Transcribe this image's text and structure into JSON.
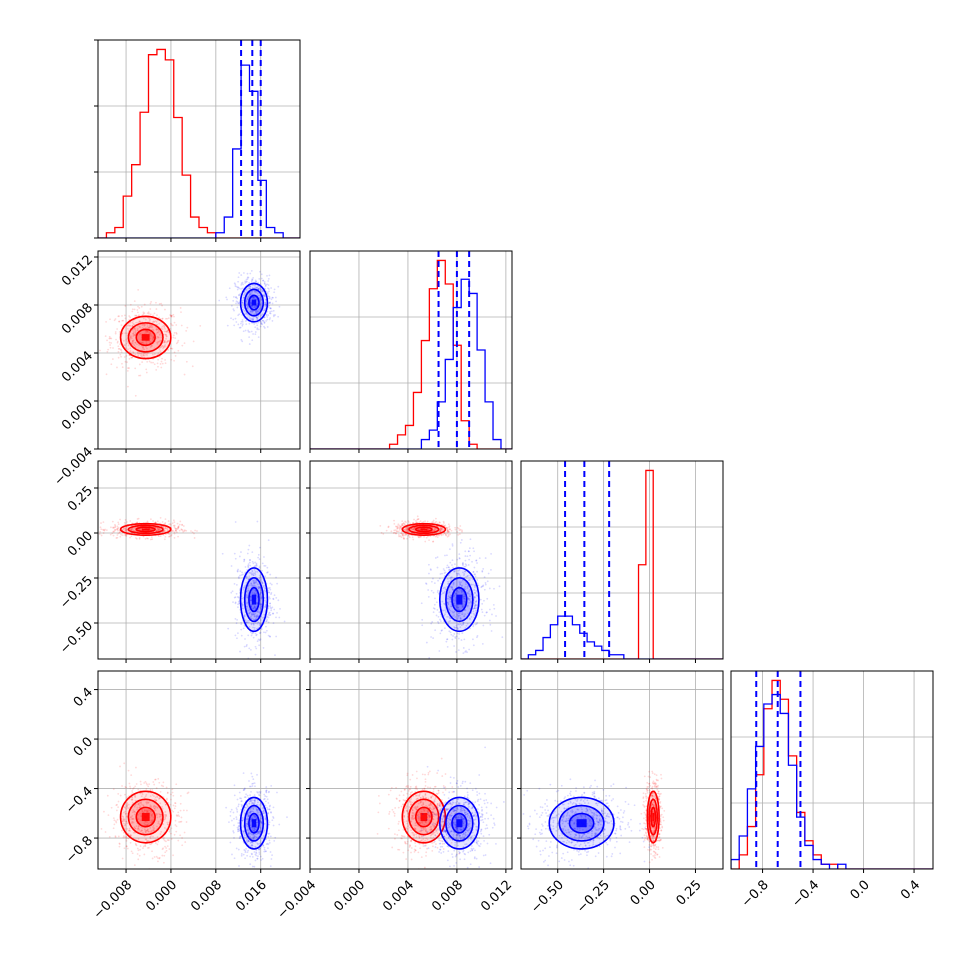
{
  "chart_data": {
    "type": "corner",
    "grid": true,
    "series": [
      {
        "color": "#ff0000"
      },
      {
        "color": "#0000ff"
      }
    ],
    "variables": [
      {
        "range": [
          -0.013,
          0.023
        ],
        "ticks": [
          -0.008,
          0.0,
          0.008,
          0.016
        ],
        "tick_labels": [
          "−0.008",
          "0.000",
          "0.008",
          "0.016"
        ]
      },
      {
        "range": [
          -0.004,
          0.0125
        ],
        "ticks": [
          -0.004,
          0.0,
          0.004,
          0.008,
          0.012
        ],
        "tick_labels": [
          "−0.004",
          "0.000",
          "0.004",
          "0.008",
          "0.012"
        ]
      },
      {
        "range": [
          -0.7,
          0.4
        ],
        "ticks": [
          -0.5,
          -0.25,
          0.0,
          0.25
        ],
        "tick_labels": [
          "−0.50",
          "−0.25",
          "0.00",
          "0.25"
        ]
      },
      {
        "range": [
          -1.05,
          0.55
        ],
        "ticks": [
          -0.8,
          -0.4,
          0.0,
          0.4
        ],
        "tick_labels": [
          "−0.8",
          "−0.4",
          "0.0",
          "0.4"
        ]
      }
    ],
    "quantile_lines": [
      [
        0.0125,
        0.0145,
        0.016
      ],
      [
        0.0065,
        0.008,
        0.009
      ],
      [
        -0.46,
        -0.355,
        -0.22
      ],
      [
        -0.85,
        -0.68,
        -0.5
      ]
    ],
    "marginals": [
      {
        "red": {
          "edges_start": -0.013,
          "bin_width": 0.0015,
          "counts": [
            0,
            1,
            2,
            8,
            14,
            24,
            35,
            36,
            34,
            23,
            12,
            4,
            2,
            1,
            0,
            0,
            0,
            0,
            0,
            0,
            0,
            0,
            0,
            0
          ]
        },
        "blue": {
          "edges_start": -0.013,
          "bin_width": 0.0015,
          "counts": [
            0,
            0,
            0,
            0,
            0,
            0,
            0,
            0,
            0,
            0,
            0,
            0,
            0,
            0,
            1,
            4,
            17,
            33,
            28,
            11,
            2,
            1,
            0,
            0
          ]
        }
      },
      {
        "red": {
          "edges_start": -0.004,
          "bin_width": 0.00065,
          "counts": [
            0,
            0,
            0,
            0,
            0,
            0,
            0,
            0,
            0,
            0,
            1,
            3,
            5,
            12,
            23,
            34,
            40,
            35,
            22,
            6,
            1,
            0,
            0,
            0,
            0,
            0
          ]
        },
        "blue": {
          "edges_start": -0.004,
          "bin_width": 0.00065,
          "counts": [
            0,
            0,
            0,
            0,
            0,
            0,
            0,
            0,
            0,
            0,
            0,
            0,
            0,
            0,
            2,
            4,
            10,
            19,
            30,
            36,
            33,
            21,
            10,
            2,
            0,
            0
          ]
        }
      },
      {
        "red": {
          "edges_start": -0.7,
          "bin_width": 0.04,
          "counts": [
            0,
            0,
            0,
            0,
            0,
            0,
            0,
            0,
            0,
            0,
            0,
            0,
            0,
            0,
            0,
            0,
            22,
            44,
            0,
            0,
            0,
            0,
            0,
            0,
            0,
            0,
            0,
            0
          ]
        },
        "blue": {
          "edges_start": -0.7,
          "bin_width": 0.04,
          "counts": [
            0,
            1,
            2,
            5,
            8,
            10,
            10,
            8,
            6,
            4,
            3,
            2,
            1,
            1,
            0,
            0,
            0,
            0,
            0,
            0,
            0,
            0,
            0,
            0,
            0,
            0,
            0,
            0
          ]
        }
      },
      {
        "red": {
          "edges_start": -1.05,
          "bin_width": 0.065,
          "counts": [
            0,
            3,
            9,
            20,
            34,
            40,
            36,
            24,
            12,
            6,
            3,
            1,
            1,
            0,
            0,
            0,
            0,
            0,
            0,
            0,
            0,
            0,
            0,
            0,
            0
          ]
        },
        "blue": {
          "edges_start": -1.05,
          "bin_width": 0.065,
          "counts": [
            2,
            7,
            17,
            26,
            35,
            37,
            33,
            22,
            11,
            5,
            2,
            1,
            0,
            1,
            0,
            0,
            0,
            0,
            0,
            0,
            0,
            0,
            0,
            0,
            0
          ]
        }
      }
    ],
    "distributions": {
      "red": {
        "mean": [
          -0.0045,
          0.0053,
          0.02,
          -0.63
        ],
        "sd": [
          0.0028,
          0.0011,
          0.02,
          0.13
        ]
      },
      "blue": {
        "mean": [
          0.0148,
          0.0082,
          -0.37,
          -0.68
        ],
        "sd": [
          0.0015,
          0.001,
          0.11,
          0.13
        ]
      }
    },
    "contour_levels_sd": [
      0.6,
      1.1,
      1.6
    ]
  }
}
